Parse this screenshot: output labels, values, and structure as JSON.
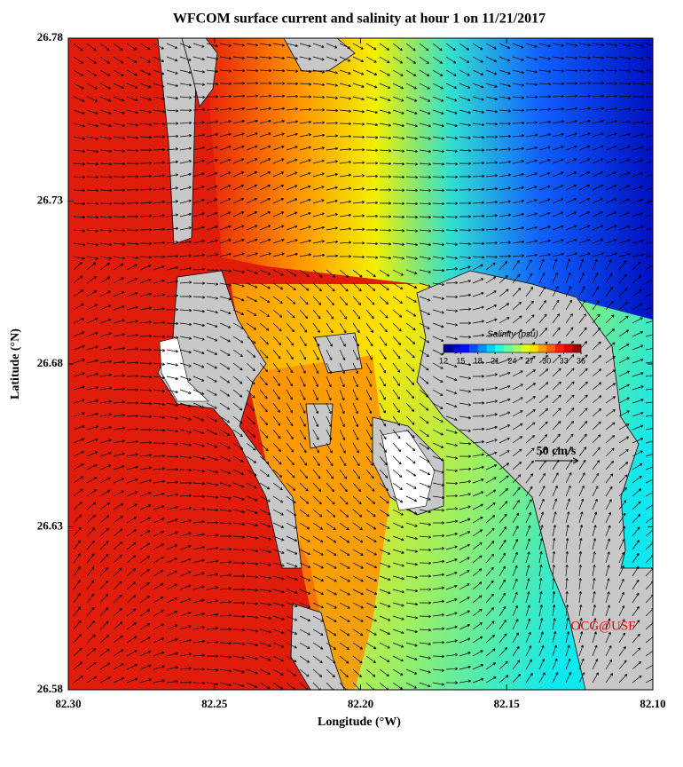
{
  "chart_data": {
    "type": "map",
    "title": "WFCOM surface current and salinity at hour 1 on 11/21/2017",
    "x_label": "Longitude (°W)",
    "y_label": "Latitude (°N)",
    "xlim": [
      82.3,
      82.1
    ],
    "ylim": [
      26.58,
      26.78
    ],
    "xticks": [
      {
        "value": 82.3,
        "label": "82.30"
      },
      82.25,
      {
        "value": 82.2,
        "label": "82.20"
      },
      82.15,
      {
        "value": 82.1,
        "label": "82.10"
      }
    ],
    "yticks": [
      26.58,
      26.63,
      26.68,
      26.73,
      26.78
    ],
    "colorbar": {
      "title": "Salinity (psu)",
      "lim": [
        12,
        36
      ],
      "ticks": [
        12,
        15,
        18,
        21,
        24,
        27,
        30,
        33,
        36
      ],
      "colors": [
        "#00008f",
        "#0000cf",
        "#0010ff",
        "#0050ff",
        "#0090ff",
        "#00d0ff",
        "#20ffdf",
        "#60ff9f",
        "#a0ff60",
        "#dfff20",
        "#ffe000",
        "#ffa000",
        "#ff6000",
        "#ff2000",
        "#df0000",
        "#9f0000"
      ]
    },
    "annotations": [
      "50 cm/s",
      "OCG@USF"
    ]
  }
}
